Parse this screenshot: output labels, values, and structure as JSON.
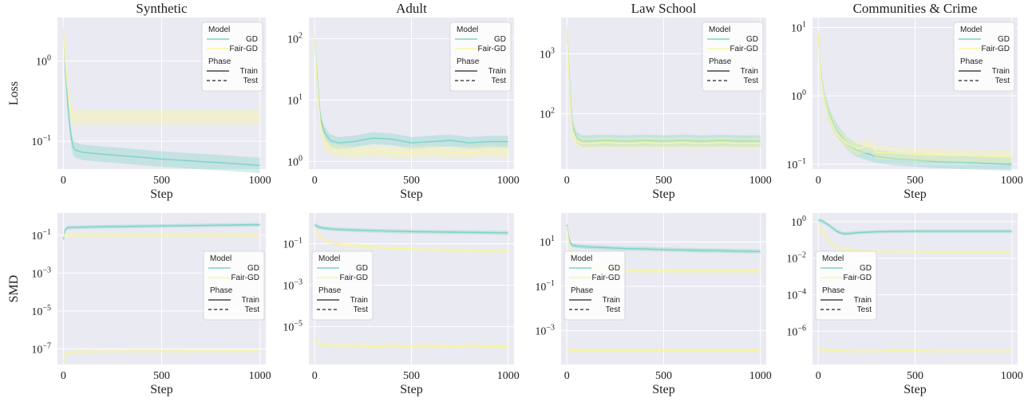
{
  "figure": {
    "colors": {
      "GD": "#7dd3c6",
      "Fair-GD": "#f8f5a3",
      "panel_bg": "#eaeaf2",
      "grid": "#ffffff"
    },
    "legend": {
      "model_title": "Model",
      "phase_title": "Phase",
      "model_items": [
        "GD",
        "Fair-GD"
      ],
      "phase_items": [
        "Train",
        "Test"
      ]
    }
  },
  "chart_data": [
    {
      "type": "line",
      "title": "Synthetic",
      "xlabel": "Step",
      "ylabel": "Loss",
      "x_ticks": [
        0,
        500,
        1000
      ],
      "y_scale": "log",
      "y_ticks": [
        {
          "base": "10",
          "exp": "0"
        },
        {
          "base": "10",
          "exp": "−1"
        }
      ],
      "ylim": [
        0.045,
        3.5
      ],
      "legend_position": "top-right",
      "grid": true,
      "series": [
        {
          "name": "GD",
          "phase": "Train",
          "x": [
            0,
            5,
            10,
            20,
            30,
            40,
            50,
            60,
            80,
            100,
            200,
            300,
            400,
            500,
            600,
            700,
            800,
            900,
            1000
          ],
          "y": [
            2.5,
            1.5,
            0.8,
            0.35,
            0.18,
            0.11,
            0.085,
            0.078,
            0.075,
            0.073,
            0.069,
            0.066,
            0.063,
            0.06,
            0.058,
            0.056,
            0.054,
            0.052,
            0.05
          ]
        },
        {
          "name": "Fair-GD",
          "phase": "Train",
          "x": [
            0,
            5,
            10,
            20,
            30,
            40,
            50,
            60,
            80,
            100,
            200,
            400,
            600,
            800,
            1000
          ],
          "y": [
            2.5,
            1.6,
            1.0,
            0.5,
            0.3,
            0.22,
            0.2,
            0.2,
            0.2,
            0.2,
            0.2,
            0.2,
            0.2,
            0.2,
            0.2
          ]
        }
      ]
    },
    {
      "type": "line",
      "title": "Adult",
      "xlabel": "Step",
      "ylabel": "",
      "x_ticks": [
        0,
        500,
        1000
      ],
      "y_scale": "log",
      "y_ticks": [
        {
          "base": "10",
          "exp": "2"
        },
        {
          "base": "10",
          "exp": "1"
        },
        {
          "base": "10",
          "exp": "0"
        }
      ],
      "ylim": [
        0.75,
        220
      ],
      "legend_position": "top-right",
      "grid": true,
      "series": [
        {
          "name": "GD",
          "phase": "Train",
          "x": [
            0,
            10,
            20,
            30,
            50,
            80,
            120,
            200,
            300,
            400,
            500,
            600,
            700,
            800,
            900,
            1000
          ],
          "y": [
            100,
            30,
            12,
            5,
            3,
            2.2,
            2.0,
            2.1,
            2.4,
            2.3,
            2.0,
            2.1,
            2.2,
            2.0,
            2.1,
            2.1
          ]
        },
        {
          "name": "Fair-GD",
          "phase": "Train",
          "x": [
            0,
            10,
            20,
            30,
            50,
            80,
            120,
            200,
            300,
            400,
            500,
            600,
            700,
            800,
            900,
            1000
          ],
          "y": [
            100,
            25,
            10,
            4,
            2,
            1.6,
            1.5,
            1.4,
            1.5,
            1.4,
            1.4,
            1.45,
            1.4,
            1.4,
            1.45,
            1.4
          ]
        }
      ]
    },
    {
      "type": "line",
      "title": "Law School",
      "xlabel": "Step",
      "ylabel": "",
      "x_ticks": [
        0,
        500,
        1000
      ],
      "y_scale": "log",
      "y_ticks": [
        {
          "base": "10",
          "exp": "3"
        },
        {
          "base": "10",
          "exp": "2"
        }
      ],
      "ylim": [
        12,
        4000
      ],
      "legend_position": "top-right",
      "grid": true,
      "series": [
        {
          "name": "GD",
          "phase": "Train",
          "x": [
            0,
            10,
            20,
            30,
            50,
            80,
            100,
            200,
            300,
            400,
            500,
            600,
            700,
            800,
            900,
            1000
          ],
          "y": [
            2500,
            600,
            150,
            60,
            40,
            35,
            35,
            36,
            35,
            36,
            35,
            36,
            35,
            36,
            35,
            35
          ]
        },
        {
          "name": "Fair-GD",
          "phase": "Train",
          "x": [
            0,
            10,
            20,
            30,
            50,
            80,
            100,
            200,
            300,
            400,
            500,
            600,
            700,
            800,
            900,
            1000
          ],
          "y": [
            2500,
            500,
            120,
            50,
            35,
            32,
            32,
            33,
            32,
            33,
            32,
            33,
            32,
            33,
            32,
            32
          ]
        }
      ]
    },
    {
      "type": "line",
      "title": "Communities & Crime",
      "xlabel": "Step",
      "ylabel": "",
      "x_ticks": [
        0,
        500,
        1000
      ],
      "y_scale": "log",
      "y_ticks": [
        {
          "base": "10",
          "exp": "1"
        },
        {
          "base": "10",
          "exp": "0"
        },
        {
          "base": "10",
          "exp": "−1"
        }
      ],
      "ylim": [
        0.085,
        14
      ],
      "legend_position": "top-right",
      "grid": true,
      "series": [
        {
          "name": "GD",
          "phase": "Train",
          "x": [
            0,
            5,
            10,
            20,
            30,
            50,
            75,
            100,
            150,
            200,
            300,
            400,
            500,
            600,
            700,
            800,
            900,
            1000
          ],
          "y": [
            8,
            4,
            2.5,
            1.5,
            1.0,
            0.6,
            0.4,
            0.3,
            0.2,
            0.16,
            0.13,
            0.12,
            0.115,
            0.11,
            0.108,
            0.105,
            0.102,
            0.1
          ]
        },
        {
          "name": "Fair-GD",
          "phase": "Train",
          "x": [
            0,
            5,
            10,
            20,
            30,
            50,
            75,
            100,
            150,
            200,
            270,
            300,
            400,
            500,
            600,
            700,
            800,
            900,
            1000
          ],
          "y": [
            8,
            4,
            2.4,
            1.4,
            0.95,
            0.55,
            0.37,
            0.27,
            0.2,
            0.17,
            0.19,
            0.15,
            0.145,
            0.14,
            0.138,
            0.135,
            0.133,
            0.131,
            0.13
          ]
        }
      ]
    },
    {
      "type": "line",
      "title": "",
      "xlabel": "Step",
      "ylabel": "SMD",
      "x_ticks": [
        0,
        500,
        1000
      ],
      "y_scale": "log",
      "y_ticks": [
        {
          "base": "10",
          "exp": "−1"
        },
        {
          "base": "10",
          "exp": "−3"
        },
        {
          "base": "10",
          "exp": "−5"
        },
        {
          "base": "10",
          "exp": "−7"
        }
      ],
      "ylim": [
        1.5e-08,
        1.5
      ],
      "legend_position": "center-right",
      "grid": true,
      "series": [
        {
          "name": "GD",
          "phase": "Train",
          "x": [
            0,
            10,
            20,
            50,
            100,
            200,
            300,
            400,
            500,
            600,
            700,
            800,
            900,
            1000
          ],
          "y": [
            0.06,
            0.2,
            0.25,
            0.26,
            0.27,
            0.28,
            0.29,
            0.3,
            0.31,
            0.32,
            0.33,
            0.34,
            0.35,
            0.36
          ]
        },
        {
          "name": "Fair-GD",
          "phase": "Train",
          "x": [
            0,
            10,
            20,
            50,
            100,
            200,
            400,
            600,
            800,
            1000
          ],
          "y": [
            0.08,
            0.12,
            0.1,
            0.1,
            0.1,
            0.1,
            0.1,
            0.1,
            0.1,
            0.1
          ]
        },
        {
          "name": "Fair-GD",
          "phase": "Train",
          "x": [
            0,
            10,
            20,
            50,
            100,
            200,
            300,
            400,
            500,
            600,
            700,
            800,
            900,
            1000
          ],
          "y": [
            2e-08,
            5e-08,
            6e-08,
            7e-08,
            7.2e-08,
            7.5e-08,
            7.5e-08,
            7.6e-08,
            7.6e-08,
            7.7e-08,
            7.7e-08,
            7.7e-08,
            7.8e-08,
            7.8e-08
          ]
        }
      ]
    },
    {
      "type": "line",
      "title": "",
      "xlabel": "Step",
      "ylabel": "",
      "x_ticks": [
        0,
        500,
        1000
      ],
      "y_scale": "log",
      "y_ticks": [
        {
          "base": "10",
          "exp": "−1"
        },
        {
          "base": "10",
          "exp": "−3"
        },
        {
          "base": "10",
          "exp": "−5"
        }
      ],
      "ylim": [
        1.5e-07,
        3
      ],
      "legend_position": "center-left",
      "grid": true,
      "series": [
        {
          "name": "GD",
          "phase": "Train",
          "x": [
            0,
            10,
            30,
            50,
            100,
            200,
            300,
            400,
            500,
            600,
            700,
            800,
            900,
            1000
          ],
          "y": [
            0.8,
            0.7,
            0.6,
            0.55,
            0.5,
            0.45,
            0.42,
            0.4,
            0.38,
            0.37,
            0.36,
            0.35,
            0.34,
            0.33
          ]
        },
        {
          "name": "Fair-GD",
          "phase": "Train",
          "x": [
            0,
            10,
            30,
            50,
            100,
            200,
            300,
            400,
            500,
            600,
            700,
            800,
            900,
            1000
          ],
          "y": [
            0.5,
            0.35,
            0.2,
            0.15,
            0.1,
            0.08,
            0.07,
            0.06,
            0.055,
            0.05,
            0.048,
            0.046,
            0.045,
            0.044
          ]
        },
        {
          "name": "Fair-GD",
          "phase": "Train",
          "x": [
            0,
            10,
            30,
            50,
            100,
            200,
            300,
            400,
            500,
            600,
            700,
            800,
            900,
            1000
          ],
          "y": [
            3e-06,
            2e-06,
            1.5e-06,
            1.3e-06,
            1.2e-06,
            1.2e-06,
            1.1e-06,
            1.2e-06,
            1.1e-06,
            1.2e-06,
            1.1e-06,
            1.2e-06,
            1.1e-06,
            1.1e-06
          ]
        }
      ]
    },
    {
      "type": "line",
      "title": "",
      "xlabel": "Step",
      "ylabel": "",
      "x_ticks": [
        0,
        500,
        1000
      ],
      "y_scale": "log",
      "y_ticks": [
        {
          "base": "10",
          "exp": "1"
        },
        {
          "base": "10",
          "exp": "−1"
        },
        {
          "base": "10",
          "exp": "−3"
        }
      ],
      "ylim": [
        3e-05,
        200
      ],
      "legend_position": "center-left",
      "grid": true,
      "series": [
        {
          "name": "GD",
          "phase": "Train",
          "x": [
            0,
            10,
            20,
            30,
            50,
            100,
            200,
            300,
            400,
            500,
            600,
            700,
            800,
            900,
            1000
          ],
          "y": [
            60,
            15,
            8,
            7,
            6.5,
            6,
            5.5,
            5,
            4.8,
            4.5,
            4.3,
            4.1,
            4,
            3.8,
            3.7
          ]
        },
        {
          "name": "Fair-GD",
          "phase": "Train",
          "x": [
            0,
            10,
            20,
            30,
            50,
            100,
            200,
            300,
            400,
            500,
            600,
            700,
            800,
            900,
            1000
          ],
          "y": [
            50,
            10,
            3,
            1.5,
            0.8,
            0.6,
            0.55,
            0.5,
            0.5,
            0.5,
            0.5,
            0.5,
            0.5,
            0.5,
            0.5
          ]
        },
        {
          "name": "Fair-GD",
          "phase": "Train",
          "x": [
            0,
            10,
            30,
            50,
            100,
            200,
            400,
            600,
            800,
            1000
          ],
          "y": [
            0.00015,
            0.00014,
            0.00013,
            0.00013,
            0.00013,
            0.00013,
            0.00013,
            0.00013,
            0.00013,
            0.00013
          ]
        }
      ]
    },
    {
      "type": "line",
      "title": "",
      "xlabel": "Step",
      "ylabel": "",
      "x_ticks": [
        0,
        500,
        1000
      ],
      "y_scale": "log",
      "y_ticks": [
        {
          "base": "10",
          "exp": "0"
        },
        {
          "base": "10",
          "exp": "−2"
        },
        {
          "base": "10",
          "exp": "−4"
        },
        {
          "base": "10",
          "exp": "−6"
        }
      ],
      "ylim": [
        1.5e-08,
        3
      ],
      "legend_position": "center-left",
      "grid": true,
      "series": [
        {
          "name": "GD",
          "phase": "Train",
          "x": [
            0,
            20,
            50,
            80,
            100,
            130,
            150,
            200,
            300,
            400,
            500,
            600,
            700,
            800,
            900,
            1000
          ],
          "y": [
            1.2,
            1.1,
            0.7,
            0.4,
            0.28,
            0.22,
            0.22,
            0.25,
            0.28,
            0.29,
            0.3,
            0.3,
            0.3,
            0.3,
            0.3,
            0.3
          ]
        },
        {
          "name": "Fair-GD",
          "phase": "Train",
          "x": [
            0,
            20,
            50,
            80,
            100,
            150,
            200,
            300,
            400,
            500,
            600,
            700,
            800,
            900,
            1000
          ],
          "y": [
            0.6,
            0.3,
            0.1,
            0.05,
            0.035,
            0.03,
            0.025,
            0.024,
            0.023,
            0.023,
            0.022,
            0.022,
            0.022,
            0.022,
            0.022
          ]
        },
        {
          "name": "Fair-GD",
          "phase": "Train",
          "x": [
            0,
            10,
            30,
            50,
            100,
            200,
            300,
            400,
            500,
            600,
            700,
            800,
            900,
            1000
          ],
          "y": [
            1.2e-07,
            1e-07,
            9e-08,
            9e-08,
            8.5e-08,
            8e-08,
            8e-08,
            9e-08,
            8.5e-08,
            8e-08,
            8e-08,
            8e-08,
            8e-08,
            8e-08
          ]
        }
      ]
    }
  ]
}
